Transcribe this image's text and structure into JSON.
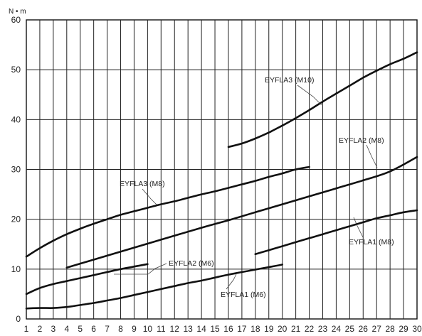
{
  "chart_data": {
    "type": "line",
    "ylabel": "N • m",
    "xlabel": "",
    "xlim": [
      1,
      30
    ],
    "ylim": [
      0,
      60
    ],
    "x_ticks": [
      1,
      2,
      3,
      4,
      5,
      6,
      7,
      8,
      9,
      10,
      11,
      12,
      13,
      14,
      15,
      16,
      17,
      18,
      19,
      20,
      21,
      22,
      23,
      24,
      25,
      26,
      27,
      28,
      29,
      30
    ],
    "x_tick_labels": [
      "1",
      "2",
      "3",
      "4",
      "5",
      "6",
      "7",
      "8",
      "9",
      "10",
      "11",
      "12",
      "13",
      "14",
      "15",
      "16",
      "17",
      "18",
      "19",
      "20",
      "21",
      "22",
      "23",
      "24",
      "25",
      "26",
      "27",
      "28",
      "29",
      "30"
    ],
    "y_ticks": [
      0,
      10,
      20,
      30,
      40,
      50,
      60
    ],
    "y_tick_labels": [
      "0",
      "10",
      "20",
      "30",
      "40",
      "50",
      "60"
    ],
    "grid": true,
    "series": [
      {
        "name": "EYFLA3 (M10)",
        "x": [
          16,
          17,
          18,
          19,
          20,
          21,
          22,
          23,
          24,
          25,
          26,
          27,
          28,
          29,
          30
        ],
        "y": [
          34.5,
          35.2,
          36.2,
          37.4,
          38.8,
          40.3,
          41.9,
          43.6,
          45.2,
          46.8,
          48.4,
          49.8,
          51.1,
          52.2,
          53.5
        ]
      },
      {
        "name": "EYFLA3 (M8)",
        "x": [
          1,
          2,
          3,
          4,
          5,
          6,
          7,
          8,
          9,
          10,
          11,
          12,
          13,
          14,
          15,
          16,
          17,
          18,
          19,
          20,
          21,
          22
        ],
        "y": [
          12.5,
          14.2,
          15.7,
          17.0,
          18.1,
          19.1,
          20.0,
          20.9,
          21.6,
          22.3,
          23.0,
          23.6,
          24.3,
          25.0,
          25.6,
          26.3,
          27.0,
          27.7,
          28.5,
          29.2,
          30.0,
          30.5
        ]
      },
      {
        "name": "EYFLA2 (M8)",
        "x": [
          4,
          6,
          8,
          10,
          12,
          14,
          16,
          18,
          20,
          22,
          24,
          26,
          28,
          30
        ],
        "y": [
          10.3,
          11.9,
          13.5,
          15.1,
          16.7,
          18.3,
          19.8,
          21.4,
          23.0,
          24.6,
          26.2,
          27.8,
          29.6,
          32.5
        ]
      },
      {
        "name": "EYFLA1 (M8)",
        "x": [
          18,
          19,
          20,
          21,
          22,
          23,
          24,
          25,
          26,
          27,
          28,
          29,
          30
        ],
        "y": [
          13.0,
          13.8,
          14.6,
          15.4,
          16.2,
          17.0,
          17.8,
          18.6,
          19.4,
          20.2,
          20.8,
          21.4,
          21.8
        ]
      },
      {
        "name": "EYFLA2 (M6)",
        "x": [
          1,
          2,
          3,
          4,
          5,
          6,
          7,
          8,
          9,
          10
        ],
        "y": [
          5.0,
          6.2,
          7.0,
          7.6,
          8.2,
          8.8,
          9.4,
          10.0,
          10.5,
          11.0
        ]
      },
      {
        "name": "EYFLA1 (M6)",
        "x": [
          1,
          2,
          3,
          4,
          5,
          6,
          7,
          8,
          9,
          10,
          11,
          12,
          13,
          14,
          15,
          16,
          17,
          18,
          19,
          20
        ],
        "y": [
          2.1,
          2.2,
          2.2,
          2.4,
          2.8,
          3.2,
          3.7,
          4.2,
          4.8,
          5.4,
          6.0,
          6.6,
          7.2,
          7.7,
          8.3,
          8.9,
          9.4,
          9.9,
          10.4,
          10.9
        ]
      }
    ],
    "annotations": [
      {
        "text": "EYFLA3 (M10)"
      },
      {
        "text": "EYFLA3 (M8)"
      },
      {
        "text": "EYFLA2 (M8)"
      },
      {
        "text": "EYFLA1 (M8)"
      },
      {
        "text": "EYFLA2 (M6)"
      },
      {
        "text": "EYFLA1 (M6)"
      }
    ]
  }
}
